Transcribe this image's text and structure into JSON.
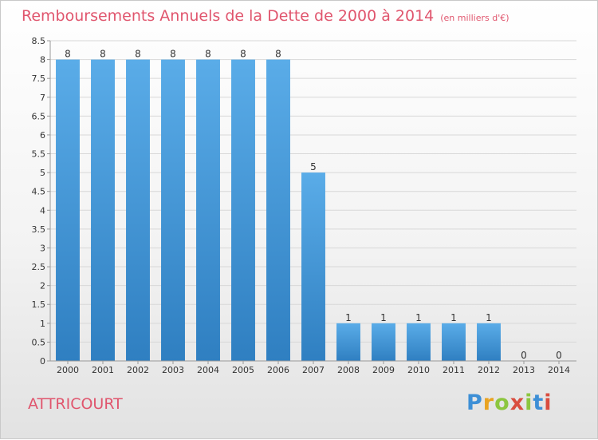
{
  "chart_data": {
    "type": "bar",
    "title": "Remboursements Annuels de la Dette de 2000 à 2014",
    "unit": "(en milliers d'€)",
    "categories": [
      "2000",
      "2001",
      "2002",
      "2003",
      "2004",
      "2005",
      "2006",
      "2007",
      "2008",
      "2009",
      "2010",
      "2011",
      "2012",
      "2013",
      "2014"
    ],
    "values": [
      8,
      8,
      8,
      8,
      8,
      8,
      8,
      5,
      1,
      1,
      1,
      1,
      1,
      0,
      0
    ],
    "ylim": [
      0,
      8.5
    ],
    "yticks": [
      "0",
      "0.5",
      "1",
      "1.5",
      "2",
      "2.5",
      "3",
      "3.5",
      "4",
      "4.5",
      "5",
      "5.5",
      "6",
      "6.5",
      "7",
      "7.5",
      "8",
      "8.5"
    ],
    "grid": true,
    "bar_color_top": "#5aace8",
    "bar_color_bottom": "#2f7fc1"
  },
  "location": "ATTRICOURT",
  "logo": "Proxiti"
}
